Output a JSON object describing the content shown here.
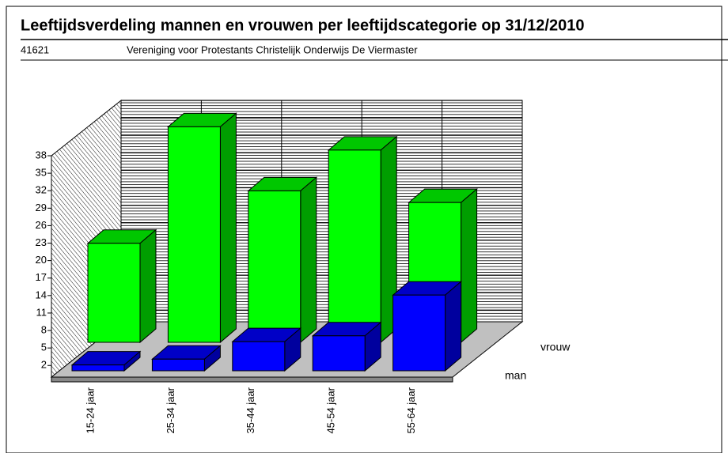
{
  "chart_data": {
    "type": "bar3d",
    "title": "Leeftijdsverdeling mannen en vrouwen per leeftijdscategorie op 31/12/2010",
    "code": "41621",
    "subtitle": "Vereniging voor Protestants Christelijk Onderwijs De Viermaster",
    "categories": [
      "15-24 jaar",
      "25-34 jaar",
      "35-44 jaar",
      "45-54 jaar",
      "55-64 jaar"
    ],
    "series": [
      {
        "name": "vrouw",
        "color": "#00ff00",
        "values": [
          17,
          37,
          26,
          33,
          24
        ]
      },
      {
        "name": "man",
        "color": "#0000ff",
        "values": [
          1,
          2,
          5,
          6,
          13
        ]
      }
    ],
    "ylim": [
      0,
      38
    ],
    "yticks": [
      2,
      5,
      8,
      11,
      14,
      17,
      20,
      23,
      26,
      29,
      32,
      35,
      38
    ],
    "grid": true
  }
}
